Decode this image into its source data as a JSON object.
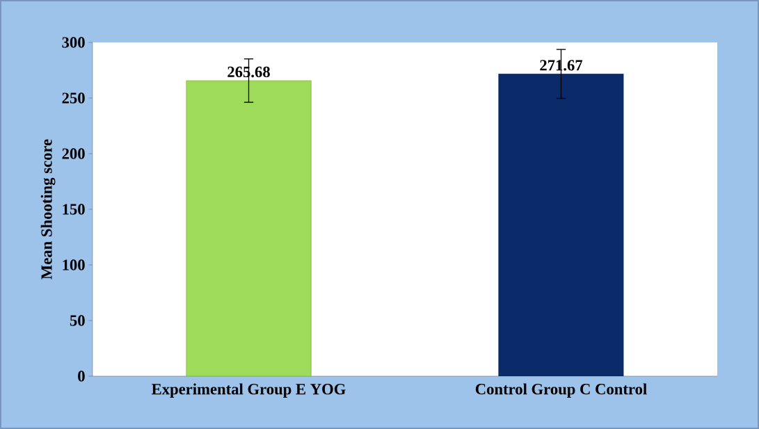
{
  "chart_data": {
    "type": "bar",
    "ylabel": "Mean Shooting score",
    "categories": [
      "Experimental Group E YOG",
      "Control Group C Control"
    ],
    "values": [
      265.68,
      271.67
    ],
    "colors": [
      "#9edb5a",
      "#0b2a69"
    ],
    "errors": [
      19.5,
      22
    ],
    "data_labels": true,
    "ylim": [
      0,
      300
    ],
    "yticks": [
      0,
      50,
      100,
      150,
      200,
      250,
      300
    ],
    "grid": false
  }
}
